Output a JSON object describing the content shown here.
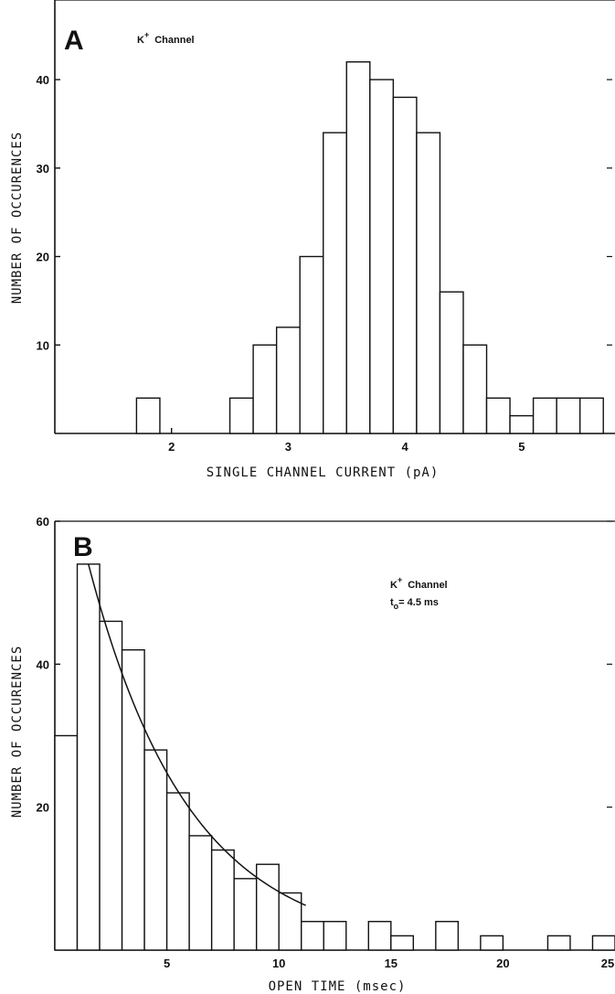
{
  "chart_data": [
    {
      "type": "bar",
      "panel_label": "A",
      "annotation": [
        "K",
        "+",
        "Channel"
      ],
      "xlabel": "SINGLE CHANNEL CURRENT (pA)",
      "ylabel": "NUMBER OF OCCURENCES",
      "xlim": [
        1.0,
        5.8
      ],
      "ylim": [
        0,
        49
      ],
      "xticks": [
        "2",
        "3",
        "4",
        "5"
      ],
      "yticks": [
        "10",
        "20",
        "30",
        "40"
      ],
      "bin_width": 0.2,
      "bin_centers": [
        1.8,
        2.6,
        2.8,
        3.0,
        3.2,
        3.4,
        3.6,
        3.8,
        4.0,
        4.2,
        4.4,
        4.6,
        4.8,
        5.0,
        5.2,
        5.4,
        5.6
      ],
      "values": [
        4,
        4,
        10,
        12,
        20,
        34,
        42,
        40,
        38,
        34,
        16,
        10,
        4,
        2,
        4,
        4,
        4
      ],
      "grid": false
    },
    {
      "type": "bar",
      "panel_label": "B",
      "annotation": [
        "K",
        "+",
        "Channel"
      ],
      "fit_label": [
        "t",
        "o",
        "= 4.5 ms"
      ],
      "xlabel": "OPEN TIME (msec)",
      "ylabel": "NUMBER OF OCCURENCES",
      "xlim": [
        0,
        25
      ],
      "ylim": [
        0,
        60
      ],
      "xticks": [
        "5",
        "10",
        "15",
        "20",
        "25"
      ],
      "yticks": [
        "20",
        "40",
        "60"
      ],
      "bin_width": 1,
      "bin_centers": [
        0.5,
        1.5,
        2.5,
        3.5,
        4.5,
        5.5,
        6.5,
        7.5,
        8.5,
        9.5,
        10.5,
        11.5,
        12.5,
        14.5,
        15.5,
        17.5,
        19.5,
        22.5,
        24.5
      ],
      "values": [
        30,
        54,
        46,
        42,
        28,
        22,
        16,
        14,
        10,
        12,
        8,
        4,
        4,
        4,
        2,
        4,
        2,
        2,
        2
      ],
      "fit": {
        "tau": 4.5,
        "amplitude": 54,
        "x_start": 1.5,
        "x_end": 11.2
      },
      "grid": false
    }
  ]
}
